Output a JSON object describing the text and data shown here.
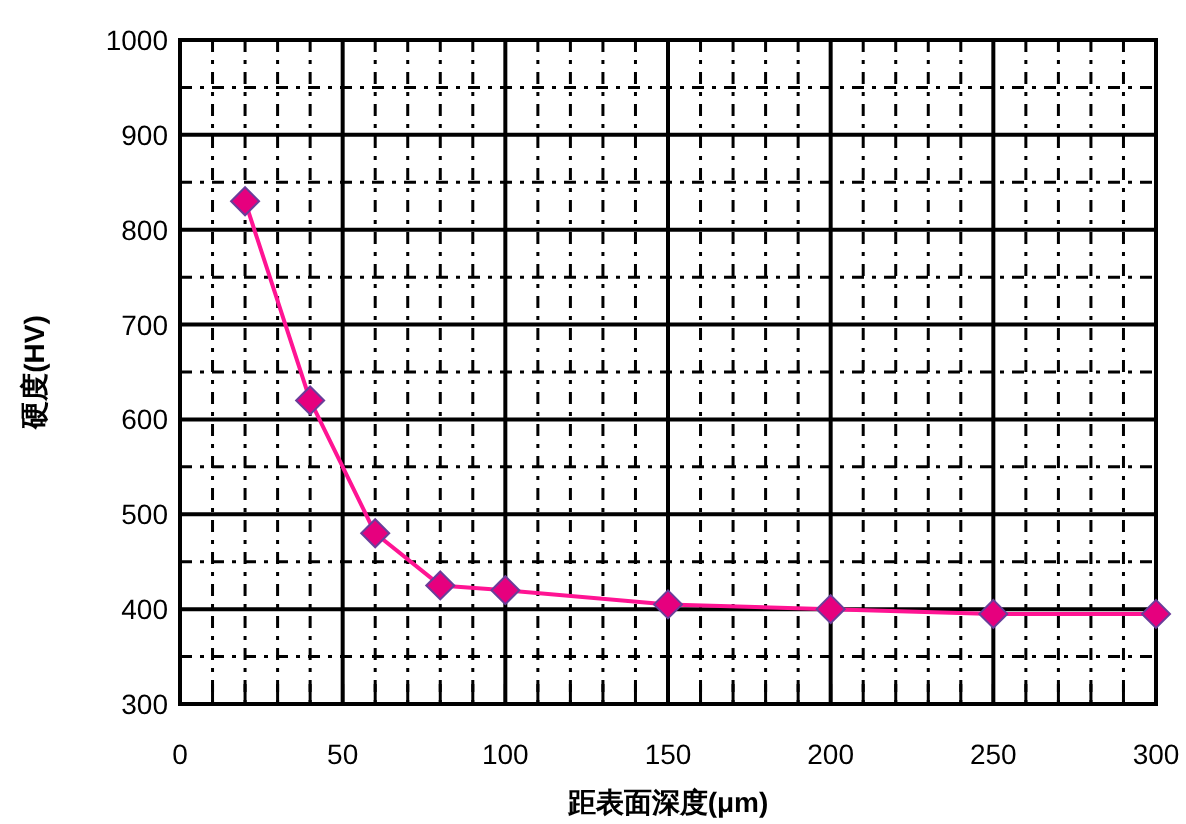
{
  "chart_data": {
    "type": "line",
    "xlabel": "距表面深度(μm)",
    "ylabel": "硬度(HV)",
    "x": [
      20,
      40,
      60,
      80,
      100,
      150,
      200,
      250,
      300
    ],
    "series": [
      {
        "color": "#ff1493",
        "values": [
          830,
          620,
          480,
          425,
          420,
          405,
          400,
          395,
          395
        ]
      }
    ],
    "marker": "diamond",
    "grid": true,
    "xlim": [
      0,
      300
    ],
    "ylim": [
      300,
      1000
    ],
    "xticks": [
      0,
      {
        "value": 10,
        "label": null
      },
      {
        "value": 20,
        "label": null
      },
      {
        "value": 30,
        "label": null
      },
      {
        "value": 40,
        "label": null
      },
      50,
      {
        "value": 60,
        "label": null
      },
      {
        "value": 70,
        "label": null
      },
      {
        "value": 80,
        "label": null
      },
      {
        "value": 90,
        "label": null
      },
      100,
      {
        "value": 110,
        "label": null
      },
      {
        "value": 120,
        "label": null
      },
      {
        "value": 130,
        "label": null
      },
      {
        "value": 140,
        "label": null
      },
      150,
      {
        "value": 160,
        "label": null
      },
      {
        "value": 170,
        "label": null
      },
      {
        "value": 180,
        "label": null
      },
      {
        "value": 190,
        "label": null
      },
      200,
      {
        "value": 210,
        "label": null
      },
      {
        "value": 220,
        "label": null
      },
      {
        "value": 230,
        "label": null
      },
      {
        "value": 240,
        "label": null
      },
      250,
      {
        "value": 260,
        "label": null
      },
      {
        "value": 270,
        "label": null
      },
      {
        "value": 280,
        "label": null
      },
      {
        "value": 290,
        "label": null
      },
      300
    ],
    "yticks": [
      300,
      {
        "value": 350,
        "label": null
      },
      400,
      {
        "value": 450,
        "label": null
      },
      500,
      {
        "value": 550,
        "label": null
      },
      600,
      {
        "value": 650,
        "label": null
      },
      700,
      {
        "value": 750,
        "label": null
      },
      800,
      {
        "value": 850,
        "label": null
      },
      900,
      {
        "value": 950,
        "label": null
      },
      1000
    ]
  }
}
